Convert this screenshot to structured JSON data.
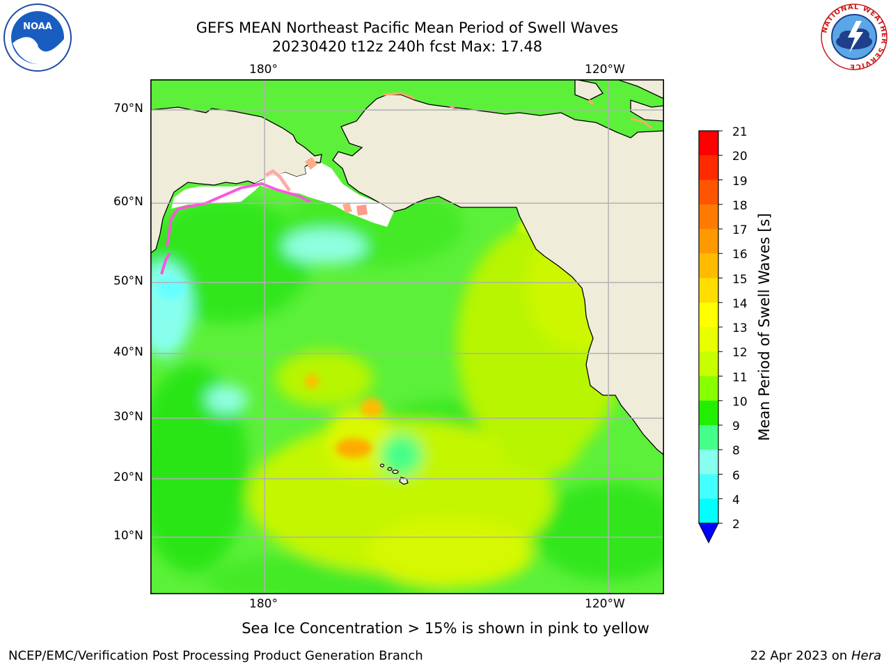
{
  "title": {
    "line1": "GEFS MEAN Northeast Pacific Mean Period of Swell Waves",
    "line2": "20230420 t12z 240h fcst   Max: 17.48"
  },
  "logos": {
    "left": {
      "name": "noaa-logo",
      "text": "NOAA"
    },
    "right": {
      "name": "nws-logo",
      "ring_text": "NATIONAL WEATHER SERVICE"
    }
  },
  "map": {
    "top_lon_labels": [
      "180°",
      "120°W"
    ],
    "bottom_lon_labels": [
      "180°",
      "120°W"
    ],
    "lat_labels": [
      "70°N",
      "60°N",
      "50°N",
      "40°N",
      "30°N",
      "20°N",
      "10°N"
    ]
  },
  "colorbar": {
    "title": "Mean Period of Swell Waves [s]",
    "ticks": [
      "21",
      "20",
      "19",
      "18",
      "17",
      "16",
      "15",
      "14",
      "13",
      "12",
      "11",
      "10",
      "9",
      "8",
      "6",
      "4",
      "2"
    ],
    "colors": [
      "#ff0000",
      "#ff2a00",
      "#ff5500",
      "#ff7a00",
      "#ff9900",
      "#ffbb00",
      "#ffdd00",
      "#ffff00",
      "#e8ff00",
      "#c8ff00",
      "#88ff00",
      "#22ee00",
      "#44ff88",
      "#88ffee",
      "#44ffff",
      "#00ffff",
      "#00ccff",
      "#0066ff"
    ],
    "extend_color": "#0000ff"
  },
  "caption": "Sea Ice Concentration > 15% is shown in pink to yellow",
  "footer": {
    "left": "NCEP/EMC/Verification Post Processing Product Generation Branch",
    "right_prefix": "22 Apr 2023 on ",
    "right_italic": "Hera"
  },
  "colors": {
    "land": "#efedda",
    "ocean_base": "#5cf03a",
    "grid": "#b0b0b0"
  }
}
